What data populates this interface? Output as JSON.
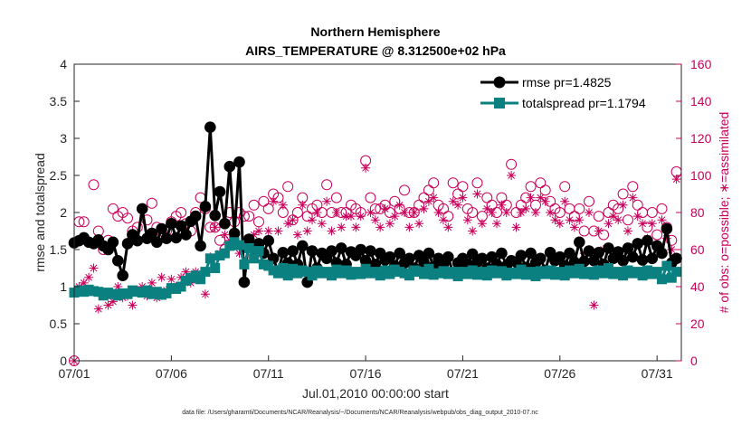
{
  "chart_data": {
    "type": "line",
    "title": "Northern Hemisphere",
    "subtitle": "AIRS_TEMPERATURE @ 8.312500e+02 hPa",
    "xlabel": "Jul.01,2010 00:00:00 start",
    "ylabel": "rmse and totalspread",
    "ylabel_right": "# of obs: o=possible; ∗=assimilated",
    "footer": "data file: /Users/gharamti/Documents/NCAR/Reanalysis/~/Documents/NCAR/Reanalysis/webpub/obs_diag_output_2010-07.nc",
    "xlim": [
      1,
      32.25
    ],
    "ylim": [
      0,
      4
    ],
    "ylim_right": [
      0,
      160
    ],
    "x_ticks": [
      1,
      6,
      11,
      16,
      21,
      26,
      31
    ],
    "x_tick_labels": [
      "07/01",
      "07/06",
      "07/11",
      "07/16",
      "07/21",
      "07/26",
      "07/31"
    ],
    "y_ticks": [
      0,
      0.5,
      1,
      1.5,
      2,
      2.5,
      3,
      3.5,
      4
    ],
    "y_tick_labels": [
      "0",
      "0.5",
      "1",
      "1.5",
      "2",
      "2.5",
      "3",
      "3.5",
      "4"
    ],
    "y_ticks_right": [
      0,
      20,
      40,
      60,
      80,
      100,
      120,
      140,
      160
    ],
    "y_tick_labels_right": [
      "0",
      "20",
      "40",
      "60",
      "80",
      "100",
      "120",
      "140",
      "160"
    ],
    "legend_position": "top-right",
    "colors": {
      "rmse": "#000000",
      "totalspread": "#0a8080",
      "obs": "#c8005a",
      "axis": "#262626"
    },
    "x": [
      1.0,
      1.25,
      1.5,
      1.75,
      2.0,
      2.25,
      2.5,
      2.75,
      3.0,
      3.25,
      3.5,
      3.75,
      4.0,
      4.25,
      4.5,
      4.75,
      5.0,
      5.25,
      5.5,
      5.75,
      6.0,
      6.25,
      6.5,
      6.75,
      7.0,
      7.25,
      7.5,
      7.75,
      8.0,
      8.25,
      8.5,
      8.75,
      9.0,
      9.25,
      9.5,
      9.75,
      10.0,
      10.25,
      10.5,
      10.75,
      11.0,
      11.25,
      11.5,
      11.75,
      12.0,
      12.25,
      12.5,
      12.75,
      13.0,
      13.25,
      13.5,
      13.75,
      14.0,
      14.25,
      14.5,
      14.75,
      15.0,
      15.25,
      15.5,
      15.75,
      16.0,
      16.25,
      16.5,
      16.75,
      17.0,
      17.25,
      17.5,
      17.75,
      18.0,
      18.25,
      18.5,
      18.75,
      19.0,
      19.25,
      19.5,
      19.75,
      20.0,
      20.25,
      20.5,
      20.75,
      21.0,
      21.25,
      21.5,
      21.75,
      22.0,
      22.25,
      22.5,
      22.75,
      23.0,
      23.25,
      23.5,
      23.75,
      24.0,
      24.25,
      24.5,
      24.75,
      25.0,
      25.25,
      25.5,
      25.75,
      26.0,
      26.25,
      26.5,
      26.75,
      27.0,
      27.25,
      27.5,
      27.75,
      28.0,
      28.25,
      28.5,
      28.75,
      29.0,
      29.25,
      29.5,
      29.75,
      30.0,
      30.25,
      30.5,
      30.75,
      31.0,
      31.25,
      31.5,
      31.75,
      32.0
    ],
    "series": [
      {
        "name": "rmse",
        "legend": "rmse pr=1.4825",
        "marker": "circle",
        "values": [
          1.59,
          1.62,
          1.66,
          1.6,
          1.58,
          1.63,
          1.55,
          1.5,
          1.6,
          1.35,
          1.15,
          1.58,
          1.7,
          1.62,
          2.05,
          1.65,
          1.72,
          1.6,
          1.78,
          1.65,
          1.85,
          1.66,
          1.82,
          1.7,
          1.88,
          1.95,
          1.55,
          2.08,
          3.15,
          1.96,
          2.28,
          1.85,
          2.62,
          1.72,
          2.68,
          1.06,
          1.64,
          1.52,
          1.58,
          1.45,
          1.62,
          1.38,
          1.2,
          1.46,
          1.32,
          1.48,
          1.3,
          1.55,
          1.06,
          1.48,
          1.25,
          1.45,
          1.38,
          1.48,
          1.32,
          1.52,
          1.3,
          1.47,
          1.42,
          1.5,
          1.35,
          1.48,
          1.3,
          1.45,
          1.36,
          1.4,
          1.28,
          1.45,
          1.32,
          1.38,
          1.25,
          1.42,
          1.33,
          1.45,
          1.27,
          1.38,
          1.3,
          1.4,
          1.18,
          1.32,
          1.38,
          1.3,
          1.44,
          1.33,
          1.38,
          1.25,
          1.4,
          1.3,
          1.45,
          1.28,
          1.35,
          1.33,
          1.42,
          1.26,
          1.45,
          1.32,
          1.38,
          1.22,
          1.46,
          1.35,
          1.4,
          1.28,
          1.45,
          1.33,
          1.6,
          1.34,
          1.48,
          1.35,
          1.46,
          1.3,
          1.52,
          1.38,
          1.47,
          1.35,
          1.52,
          1.4,
          1.58,
          1.36,
          1.62,
          1.38,
          1.55,
          1.45,
          1.78,
          1.32,
          1.38
        ]
      },
      {
        "name": "totalspread",
        "legend": "totalspread pr=1.1794",
        "marker": "square",
        "values": [
          0.92,
          0.95,
          0.93,
          0.96,
          0.94,
          0.93,
          0.88,
          0.92,
          0.9,
          0.88,
          0.91,
          0.9,
          0.95,
          0.93,
          0.92,
          0.95,
          0.9,
          0.93,
          0.89,
          0.91,
          0.98,
          0.97,
          1.0,
          1.08,
          1.12,
          1.15,
          1.1,
          1.2,
          1.38,
          1.25,
          1.42,
          1.45,
          1.55,
          1.6,
          1.56,
          1.3,
          1.52,
          1.38,
          1.48,
          1.3,
          1.28,
          1.22,
          1.18,
          1.25,
          1.15,
          1.24,
          1.18,
          1.22,
          1.2,
          1.15,
          1.22,
          1.18,
          1.2,
          1.15,
          1.23,
          1.18,
          1.22,
          1.16,
          1.2,
          1.17,
          1.24,
          1.18,
          1.2,
          1.15,
          1.22,
          1.17,
          1.23,
          1.2,
          1.18,
          1.15,
          1.22,
          1.2,
          1.17,
          1.24,
          1.16,
          1.18,
          1.21,
          1.17,
          1.2,
          1.14,
          1.2,
          1.17,
          1.22,
          1.16,
          1.2,
          1.15,
          1.22,
          1.18,
          1.21,
          1.15,
          1.19,
          1.17,
          1.23,
          1.16,
          1.2,
          1.14,
          1.21,
          1.17,
          1.22,
          1.16,
          1.2,
          1.15,
          1.22,
          1.18,
          1.24,
          1.17,
          1.2,
          1.16,
          1.22,
          1.18,
          1.25,
          1.17,
          1.2,
          1.15,
          1.22,
          1.18,
          1.2,
          1.15,
          1.22,
          1.17,
          1.2,
          1.1,
          1.28,
          1.12,
          1.2
        ]
      }
    ],
    "obs_possible": [
      0,
      75,
      75,
      64,
      95,
      70,
      60,
      65,
      82,
      78,
      80,
      77,
      70,
      72,
      82,
      76,
      85,
      72,
      70,
      70,
      75,
      78,
      80,
      74,
      70,
      80,
      88,
      82,
      72,
      72,
      65,
      60,
      80,
      75,
      80,
      78,
      78,
      84,
      75,
      86,
      82,
      90,
      88,
      80,
      94,
      76,
      80,
      88,
      78,
      82,
      84,
      80,
      95,
      80,
      88,
      80,
      80,
      84,
      82,
      80,
      108,
      88,
      82,
      82,
      84,
      80,
      86,
      82,
      92,
      80,
      80,
      84,
      88,
      92,
      96,
      84,
      82,
      78,
      96,
      90,
      94,
      82,
      80,
      96,
      78,
      88,
      84,
      80,
      88,
      84,
      106,
      80,
      84,
      88,
      94,
      84,
      96,
      92,
      86,
      82,
      80,
      94,
      82,
      78,
      82,
      70,
      86,
      70,
      78,
      68,
      80,
      84,
      82,
      90,
      76,
      94,
      84,
      80,
      72,
      80,
      68,
      82,
      72,
      65,
      102
    ],
    "obs_assimilated": [
      0,
      40,
      42,
      45,
      50,
      28,
      35,
      30,
      32,
      40,
      34,
      35,
      30,
      38,
      40,
      35,
      42,
      34,
      45,
      38,
      44,
      40,
      45,
      48,
      42,
      48,
      44,
      36,
      56,
      72,
      58,
      68,
      65,
      62,
      58,
      62,
      64,
      68,
      70,
      60,
      70,
      86,
      70,
      84,
      74,
      76,
      68,
      84,
      70,
      76,
      80,
      74,
      86,
      70,
      80,
      72,
      78,
      78,
      72,
      78,
      104,
      80,
      76,
      72,
      82,
      74,
      78,
      84,
      80,
      72,
      80,
      74,
      82,
      86,
      88,
      80,
      76,
      72,
      86,
      84,
      88,
      76,
      70,
      90,
      74,
      82,
      80,
      74,
      84,
      80,
      100,
      72,
      80,
      82,
      88,
      80,
      88,
      86,
      80,
      76,
      74,
      86,
      76,
      72,
      76,
      58,
      80,
      30,
      70,
      60,
      74,
      78,
      76,
      84,
      70,
      88,
      78,
      74,
      66,
      74,
      62,
      76,
      66,
      60,
      98
    ]
  }
}
